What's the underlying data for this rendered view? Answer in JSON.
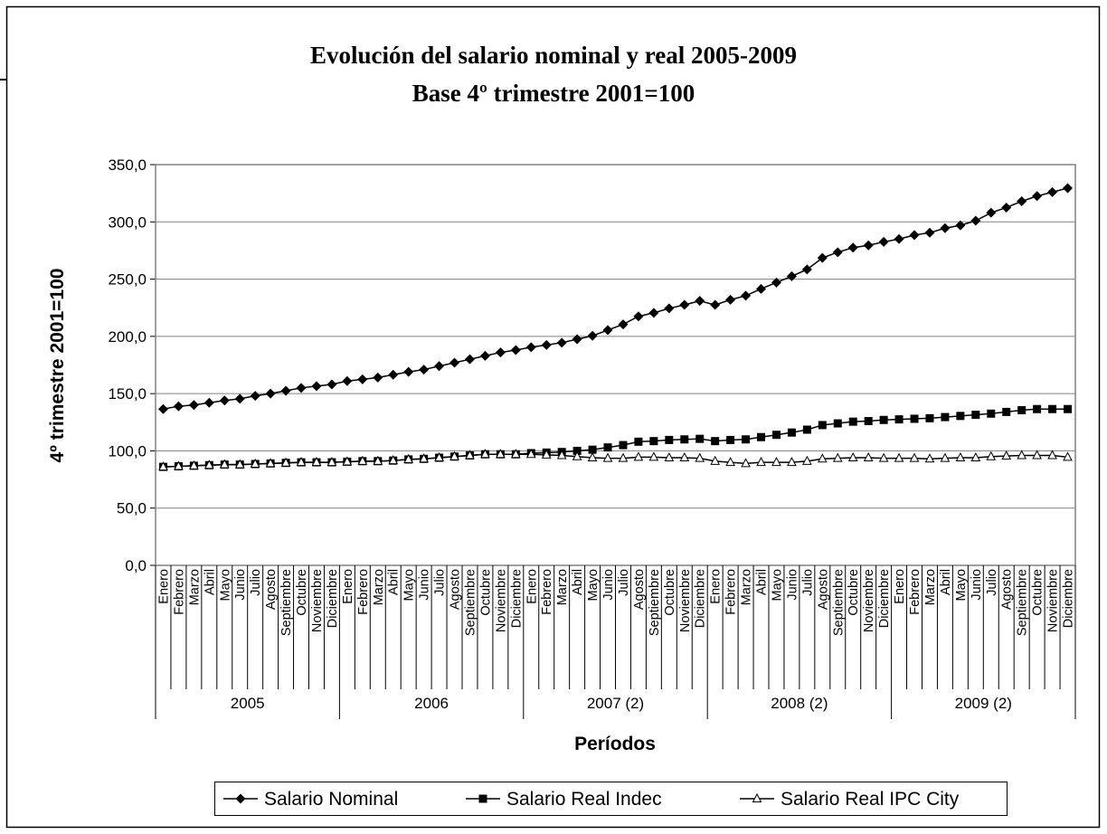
{
  "chart_data": {
    "type": "line",
    "title": "Evolución del salario nominal y real 2005-2009",
    "subtitle": "Base 4º trimestre 2001=100",
    "y_label": "4º trimestre 2001=100",
    "x_label": "Períodos",
    "categories": [
      "Enero",
      "Febrero",
      "Marzo",
      "Abril",
      "Mayo",
      "Junio",
      "Julio",
      "Agosto",
      "Septiembre",
      "Octubre",
      "Noviembre",
      "Diciembre",
      "Enero",
      "Febrero",
      "Marzo",
      "Abril",
      "Mayo",
      "Junio",
      "Julio",
      "Agosto",
      "Septiembre",
      "Octubre",
      "Noviembre",
      "Diciembre",
      "Enero",
      "Febrero",
      "Marzo",
      "Abril",
      "Mayo",
      "Junio",
      "Julio",
      "Agosto",
      "Septiembre",
      "Octubre",
      "Noviembre",
      "Diciembre",
      "Enero",
      "Febrero",
      "Marzo",
      "Abril",
      "Mayo",
      "Junio",
      "Julio",
      "Agosto",
      "Septiembre",
      "Octubre",
      "Noviembre",
      "Diciembre",
      "Enero",
      "Febrero",
      "Marzo",
      "Abril",
      "Mayo",
      "Junio",
      "Julio",
      "Agosto",
      "Septiembre",
      "Octubre",
      "Noviembre",
      "Diciembre"
    ],
    "category_groups": [
      "2005",
      "2006",
      "2007 (2)",
      "2008 (2)",
      "2009 (2)"
    ],
    "series": [
      {
        "name": "Salario Nominal",
        "color": "#000000",
        "marker": "diamond",
        "values": [
          136.5,
          139,
          140,
          142,
          144,
          145.5,
          148,
          150,
          152.5,
          155,
          156.5,
          158,
          161,
          162.5,
          164,
          166.5,
          169,
          171,
          174,
          177,
          180,
          183,
          186,
          188,
          190.5,
          192.5,
          194.5,
          197.5,
          200.5,
          205.5,
          210.5,
          217.5,
          220.5,
          224.5,
          227.5,
          231,
          227.5,
          232,
          235.5,
          241.5,
          247,
          252.5,
          258.5,
          268.5,
          273.5,
          277.5,
          279.5,
          282.5,
          285,
          288.5,
          290.5,
          294.5,
          297,
          301,
          308,
          312.5,
          318,
          322.5,
          326,
          329.5
        ]
      },
      {
        "name": "Salario Real Indec",
        "color": "#000000",
        "marker": "square",
        "values": [
          86,
          86.5,
          87,
          87.5,
          88,
          88,
          88.5,
          89,
          89.5,
          90,
          90,
          90,
          90.5,
          91,
          91,
          91.5,
          92.5,
          93,
          94,
          95,
          96,
          97,
          97,
          97,
          98,
          98.5,
          99,
          100,
          101,
          103,
          105,
          108,
          108.5,
          109.5,
          110,
          110.5,
          108.5,
          109.5,
          110,
          112,
          114,
          116,
          118.5,
          122.5,
          124,
          125.5,
          126,
          127,
          127.5,
          128,
          128.5,
          129.5,
          130.5,
          131.5,
          132.5,
          134,
          135.5,
          136.5,
          136.5,
          136.5
        ]
      },
      {
        "name": "Salario Real IPC City",
        "color": "#000000",
        "marker": "triangle",
        "values": [
          86,
          86.5,
          87,
          87.5,
          88,
          88,
          88.5,
          89,
          89.5,
          90,
          90,
          90,
          90.5,
          91,
          91,
          91.5,
          92.5,
          93,
          94,
          95,
          96,
          97,
          97,
          97,
          97,
          96.5,
          96,
          95,
          94,
          93.5,
          93.5,
          94.5,
          94.5,
          94,
          94,
          93.5,
          91,
          90,
          89,
          90,
          90,
          90,
          91,
          93,
          93.5,
          94,
          94,
          93.5,
          93.5,
          93.5,
          93,
          93.5,
          94,
          94,
          95,
          95.5,
          96,
          96,
          96,
          94.5
        ]
      }
    ],
    "ylim": [
      0,
      350
    ],
    "yticks": [
      {
        "value": 0,
        "label": "0,0"
      },
      {
        "value": 50,
        "label": "50,0"
      },
      {
        "value": 100,
        "label": "100,0"
      },
      {
        "value": 150,
        "label": "150,0"
      },
      {
        "value": 200,
        "label": "200,0"
      },
      {
        "value": 250,
        "label": "250,0"
      },
      {
        "value": 300,
        "label": "300,0"
      },
      {
        "value": 350,
        "label": "350,0"
      }
    ],
    "grid": true,
    "legend": "bottom"
  }
}
